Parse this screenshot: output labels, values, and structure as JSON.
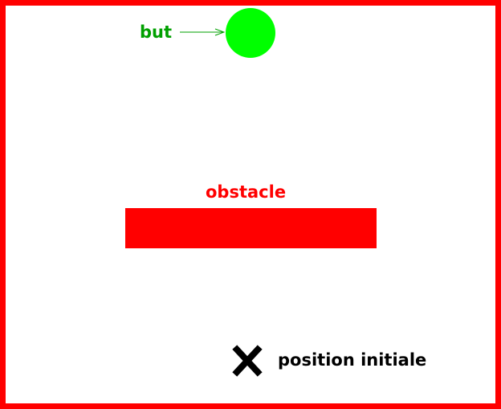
{
  "goal": {
    "label": "but",
    "color": "#00ff00",
    "label_color": "#00a000"
  },
  "obstacle": {
    "label": "obstacle",
    "color": "#ff0000"
  },
  "start": {
    "label": "position initiale",
    "mark_icon": "cross-mark-icon",
    "color": "#000000"
  },
  "frame": {
    "color": "#ff0000"
  }
}
